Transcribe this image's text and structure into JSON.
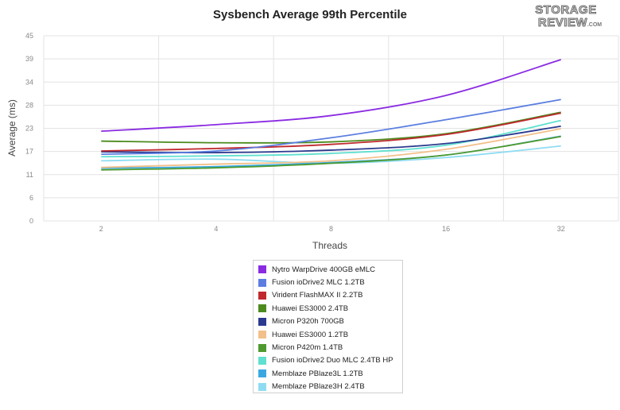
{
  "watermark": "STORAGE REVIEW.COM",
  "chart_data": {
    "type": "line",
    "title": "Sysbench Average 99th Percentile",
    "xlabel": "Threads",
    "ylabel": "Average (ms)",
    "categories": [
      "2",
      "4",
      "8",
      "16",
      "32"
    ],
    "y_ticks": [
      "0",
      "6",
      "11",
      "17",
      "23",
      "28",
      "34",
      "39",
      "45"
    ],
    "ylim": [
      0,
      45
    ],
    "grid": true,
    "legend_position": "bottom",
    "series": [
      {
        "name": "Nytro WarpDrive 400GB eMLC",
        "color": "#8a2be2",
        "values": [
          21.8,
          23.4,
          25.6,
          30.5,
          39.2
        ]
      },
      {
        "name": "Fusion ioDrive2 MLC 1.2TB",
        "color": "#5b7ee0",
        "values": [
          16.2,
          17.0,
          20.2,
          24.6,
          29.5
        ]
      },
      {
        "name": "Virident FlashMAX II 2.2TB",
        "color": "#c0282d",
        "values": [
          17.0,
          17.6,
          18.6,
          21.0,
          26.2
        ]
      },
      {
        "name": "Huawei ES3000 2.4TB",
        "color": "#4c8a1e",
        "values": [
          19.4,
          19.0,
          19.2,
          21.2,
          26.4
        ]
      },
      {
        "name": "Micron P320h 700GB",
        "color": "#2b3a8e",
        "values": [
          16.8,
          16.6,
          17.2,
          18.8,
          23.0
        ]
      },
      {
        "name": "Huawei ES3000 1.2TB",
        "color": "#f2c08a",
        "values": [
          13.0,
          13.8,
          14.6,
          17.4,
          22.4
        ]
      },
      {
        "name": "Micron P420m 1.4TB",
        "color": "#4e9a2e",
        "values": [
          12.4,
          12.9,
          14.0,
          16.0,
          20.5
        ]
      },
      {
        "name": "Fusion ioDrive2 Duo MLC 2.4TB HP",
        "color": "#5fe0d0",
        "values": [
          15.6,
          15.8,
          16.4,
          18.4,
          24.4
        ]
      },
      {
        "name": "Memblaze PBlaze3L 1.2TB",
        "color": "#3aa8e0",
        "values": [
          12.8,
          13.2,
          14.2,
          16.0,
          20.6
        ]
      },
      {
        "name": "Memblaze PBlaze3H 2.4TB",
        "color": "#8fdcf2",
        "values": [
          14.6,
          15.0,
          14.0,
          15.4,
          18.2
        ]
      }
    ]
  }
}
